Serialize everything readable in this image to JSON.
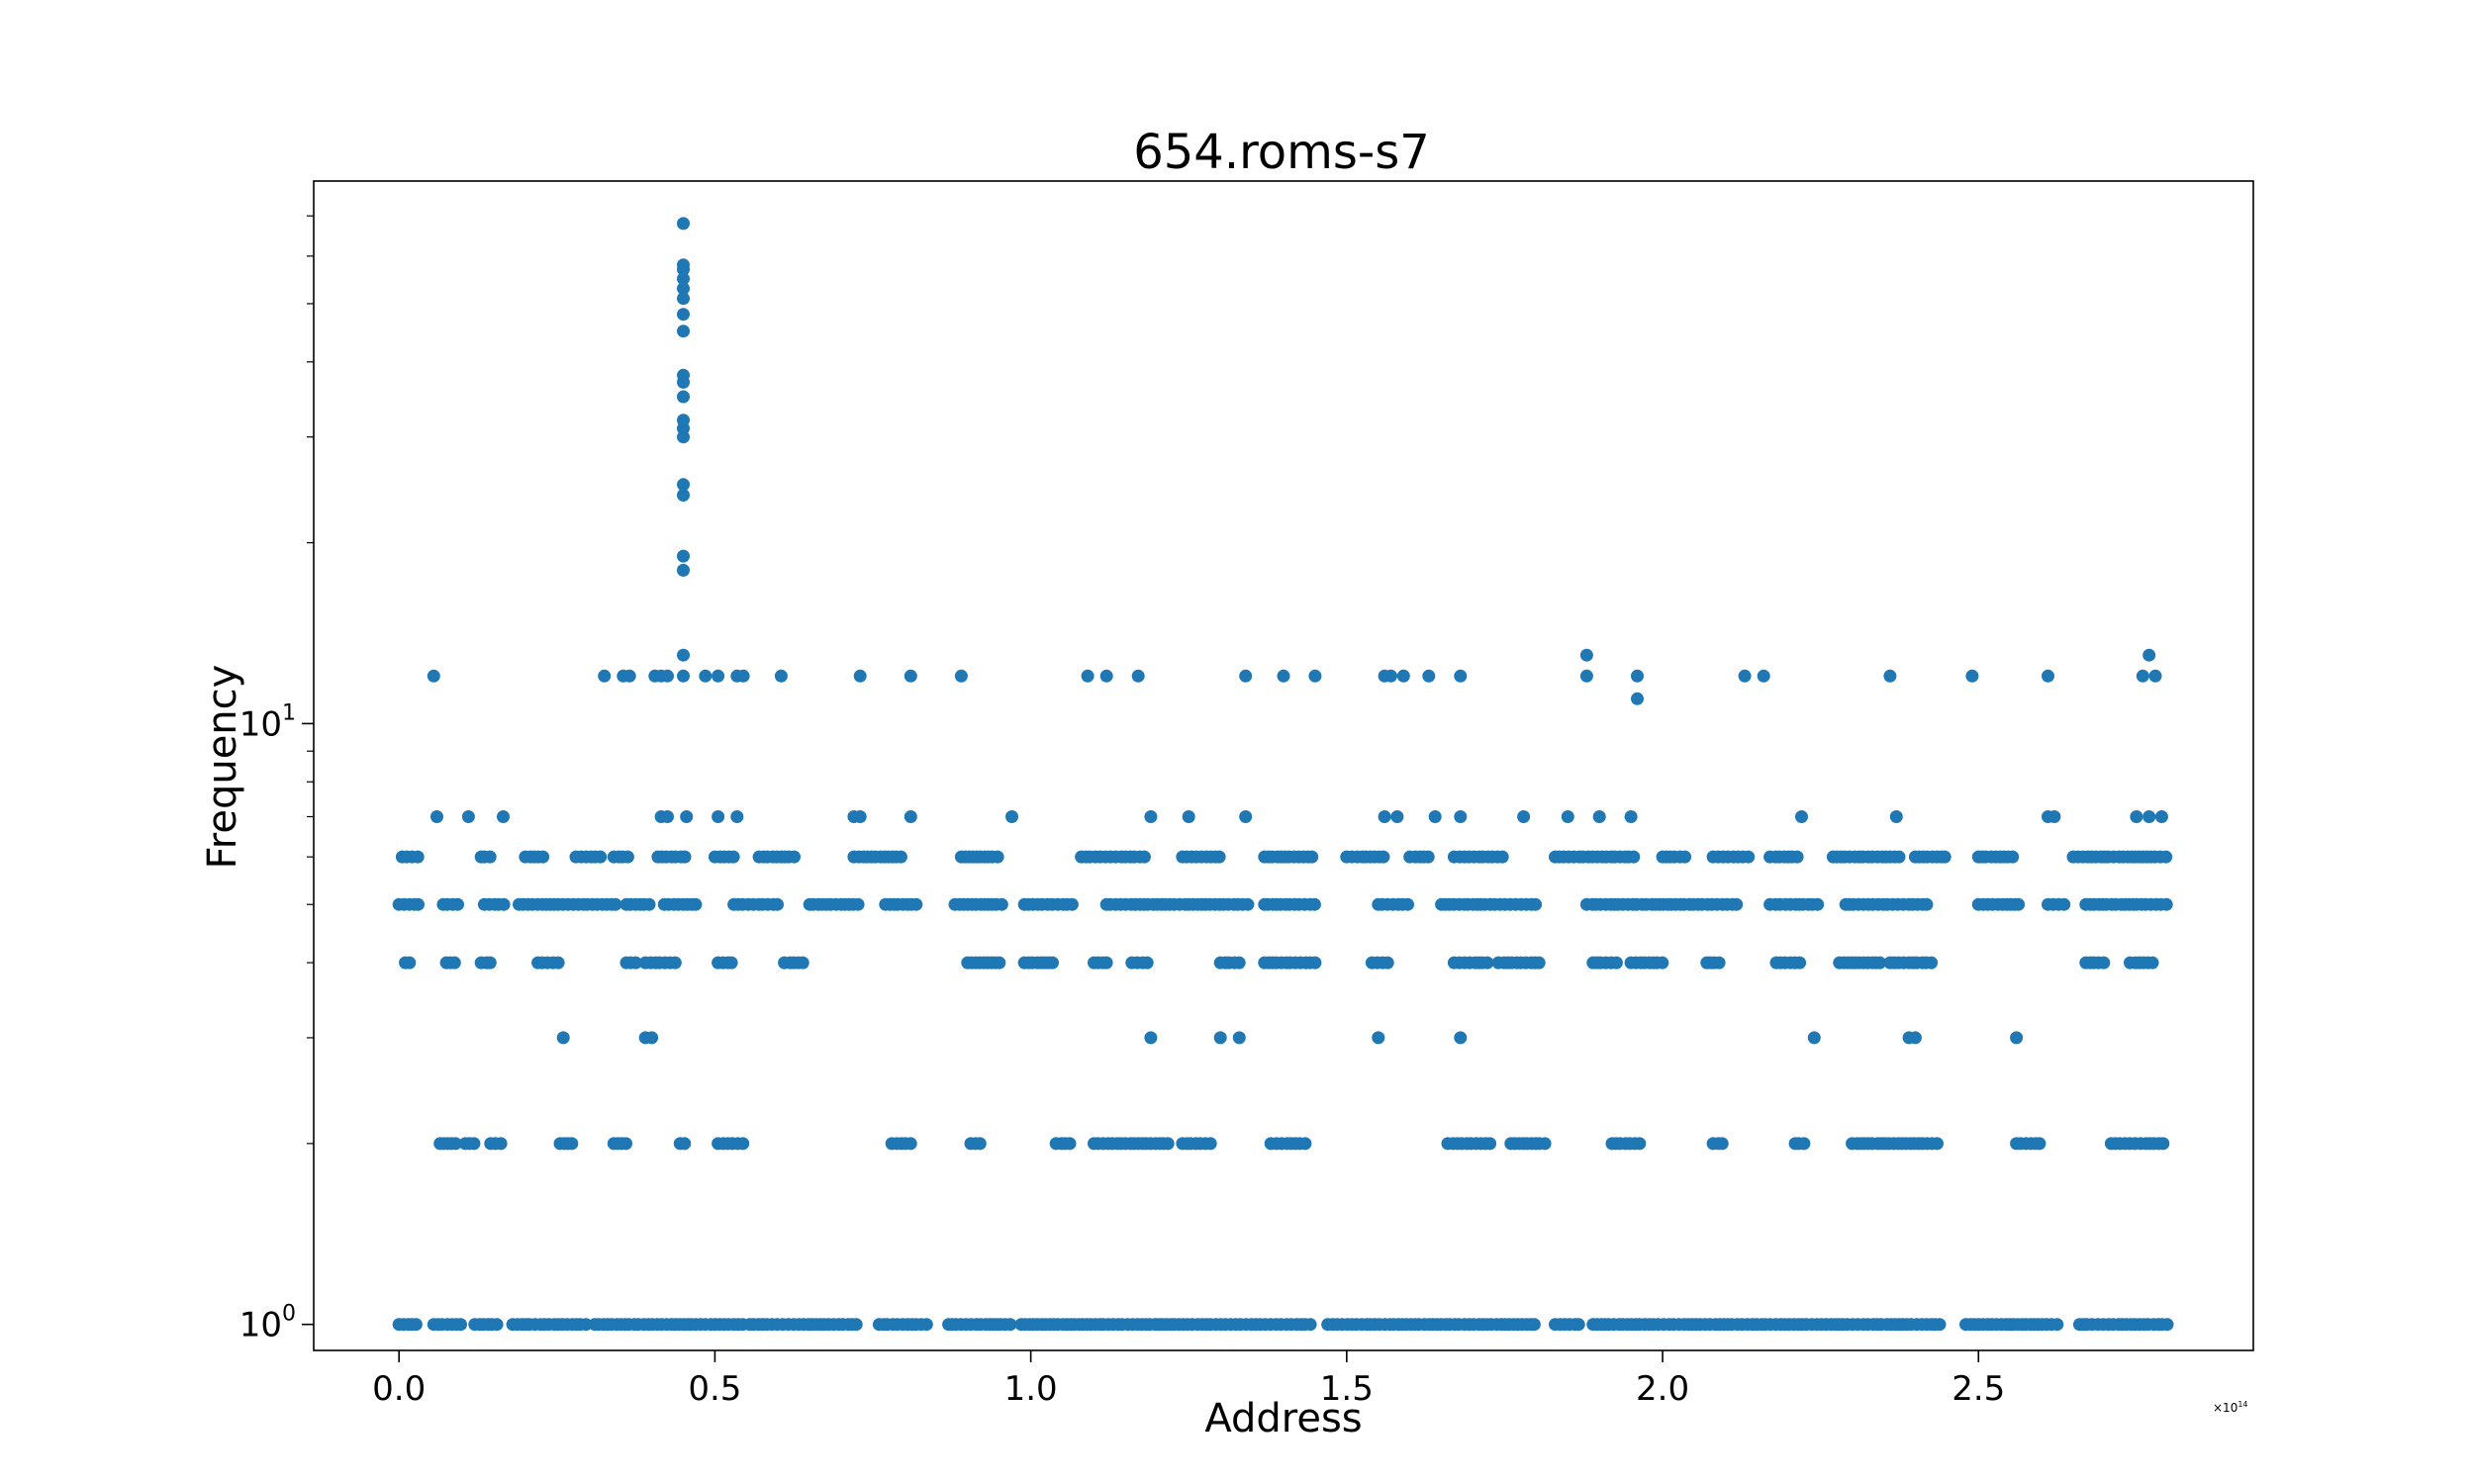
{
  "chart_data": {
    "type": "scatter",
    "title": "654.roms-s7",
    "xlabel": "Address",
    "ylabel": "Frequency",
    "x_scale": "linear",
    "y_scale": "log",
    "x_offset_label": "×10",
    "x_offset_exponent": "14",
    "xlim": [
      -0.135,
      2.935
    ],
    "ylim": [
      0.905,
      80
    ],
    "x_ticks": [
      {
        "value": 0.0,
        "label": "0.0"
      },
      {
        "value": 0.5,
        "label": "0.5"
      },
      {
        "value": 1.0,
        "label": "1.0"
      },
      {
        "value": 1.5,
        "label": "1.5"
      },
      {
        "value": 2.0,
        "label": "2.0"
      },
      {
        "value": 2.5,
        "label": "2.5"
      }
    ],
    "y_ticks": [
      {
        "value": 1,
        "base": "10",
        "exp": "0"
      },
      {
        "value": 10,
        "base": "10",
        "exp": "1"
      }
    ],
    "y_minor_ticks": [
      2,
      3,
      4,
      5,
      6,
      7,
      8,
      9,
      20,
      30,
      40,
      50,
      60,
      70
    ],
    "grid": false,
    "marker_color": "#1f77b4",
    "series": [
      {
        "name": "",
        "bands": [
          {
            "y": 1,
            "x_ranges": [
              [
                0.0,
                0.028
              ],
              [
                0.055,
                0.105
              ],
              [
                0.12,
                0.16
              ],
              [
                0.18,
                0.3
              ],
              [
                0.31,
                0.545
              ],
              [
                0.555,
                0.73
              ],
              [
                0.76,
                0.84
              ],
              [
                0.87,
                0.97
              ],
              [
                0.985,
                1.445
              ],
              [
                1.47,
                1.8
              ],
              [
                1.83,
                1.87
              ],
              [
                1.89,
                2.44
              ],
              [
                2.48,
                2.63
              ],
              [
                2.66,
                2.8
              ]
            ]
          },
          {
            "y": 2,
            "x_ranges": [
              [
                0.065,
                0.095
              ],
              [
                0.105,
                0.125
              ],
              [
                0.145,
                0.165
              ],
              [
                0.255,
                0.275
              ],
              [
                0.34,
                0.365
              ],
              [
                0.445,
                0.455
              ],
              [
                0.505,
                0.545
              ],
              [
                0.78,
                0.815
              ],
              [
                0.905,
                0.925
              ],
              [
                1.04,
                1.065
              ],
              [
                1.1,
                1.22
              ],
              [
                1.24,
                1.29
              ],
              [
                1.38,
                1.44
              ],
              [
                1.66,
                1.73
              ],
              [
                1.76,
                1.82
              ],
              [
                1.92,
                1.97
              ],
              [
                2.08,
                2.1
              ],
              [
                2.21,
                2.225
              ],
              [
                2.3,
                2.44
              ],
              [
                2.56,
                2.6
              ],
              [
                2.71,
                2.8
              ]
            ]
          },
          {
            "y": 4,
            "x_ranges": [
              [
                0.01,
                0.02
              ],
              [
                0.075,
                0.09
              ],
              [
                0.13,
                0.145
              ],
              [
                0.22,
                0.255
              ],
              [
                0.36,
                0.38
              ],
              [
                0.39,
                0.44
              ],
              [
                0.505,
                0.53
              ],
              [
                0.61,
                0.64
              ],
              [
                0.9,
                0.955
              ],
              [
                0.99,
                1.04
              ],
              [
                1.1,
                1.12
              ],
              [
                1.16,
                1.19
              ],
              [
                1.3,
                1.33
              ],
              [
                1.37,
                1.45
              ],
              [
                1.54,
                1.57
              ],
              [
                1.67,
                1.73
              ],
              [
                1.74,
                1.81
              ],
              [
                1.89,
                1.93
              ],
              [
                1.95,
                2.0
              ],
              [
                2.07,
                2.09
              ],
              [
                2.18,
                2.22
              ],
              [
                2.28,
                2.35
              ],
              [
                2.36,
                2.43
              ],
              [
                2.67,
                2.7
              ],
              [
                2.74,
                2.78
              ]
            ]
          },
          {
            "y": 5,
            "x_ranges": [
              [
                0.0,
                0.035
              ],
              [
                0.07,
                0.095
              ],
              [
                0.135,
                0.17
              ],
              [
                0.19,
                0.35
              ],
              [
                0.36,
                0.4
              ],
              [
                0.42,
                0.47
              ],
              [
                0.53,
                0.6
              ],
              [
                0.65,
                0.73
              ],
              [
                0.77,
                0.82
              ],
              [
                0.88,
                0.96
              ],
              [
                0.99,
                1.07
              ],
              [
                1.12,
                1.35
              ],
              [
                1.37,
                1.45
              ],
              [
                1.55,
                1.6
              ],
              [
                1.65,
                1.8
              ],
              [
                1.88,
                2.12
              ],
              [
                2.17,
                2.25
              ],
              [
                2.29,
                2.42
              ],
              [
                2.5,
                2.57
              ],
              [
                2.61,
                2.64
              ],
              [
                2.67,
                2.8
              ]
            ]
          },
          {
            "y": 6,
            "x_ranges": [
              [
                0.005,
                0.035
              ],
              [
                0.13,
                0.15
              ],
              [
                0.2,
                0.23
              ],
              [
                0.28,
                0.32
              ],
              [
                0.34,
                0.37
              ],
              [
                0.41,
                0.46
              ],
              [
                0.5,
                0.53
              ],
              [
                0.57,
                0.63
              ],
              [
                0.72,
                0.8
              ],
              [
                0.89,
                0.95
              ],
              [
                1.08,
                1.18
              ],
              [
                1.24,
                1.3
              ],
              [
                1.37,
                1.45
              ],
              [
                1.5,
                1.56
              ],
              [
                1.6,
                1.63
              ],
              [
                1.67,
                1.75
              ],
              [
                1.83,
                1.96
              ],
              [
                2.0,
                2.04
              ],
              [
                2.08,
                2.14
              ],
              [
                2.17,
                2.22
              ],
              [
                2.27,
                2.38
              ],
              [
                2.4,
                2.45
              ],
              [
                2.5,
                2.56
              ],
              [
                2.65,
                2.8
              ]
            ]
          }
        ],
        "values": [
          {
            "x": 0.055,
            "y": 12
          },
          {
            "x": 0.325,
            "y": 12
          },
          {
            "x": 0.355,
            "y": 12
          },
          {
            "x": 0.365,
            "y": 12
          },
          {
            "x": 0.405,
            "y": 12
          },
          {
            "x": 0.415,
            "y": 12
          },
          {
            "x": 0.425,
            "y": 12
          },
          {
            "x": 0.45,
            "y": 12
          },
          {
            "x": 0.485,
            "y": 12
          },
          {
            "x": 0.505,
            "y": 12
          },
          {
            "x": 0.535,
            "y": 12
          },
          {
            "x": 0.545,
            "y": 12
          },
          {
            "x": 0.605,
            "y": 12
          },
          {
            "x": 0.73,
            "y": 12
          },
          {
            "x": 0.81,
            "y": 12
          },
          {
            "x": 0.89,
            "y": 12
          },
          {
            "x": 1.09,
            "y": 12
          },
          {
            "x": 1.12,
            "y": 12
          },
          {
            "x": 1.17,
            "y": 12
          },
          {
            "x": 1.34,
            "y": 12
          },
          {
            "x": 1.4,
            "y": 12
          },
          {
            "x": 1.45,
            "y": 12
          },
          {
            "x": 1.56,
            "y": 12
          },
          {
            "x": 1.57,
            "y": 12
          },
          {
            "x": 1.59,
            "y": 12
          },
          {
            "x": 1.63,
            "y": 12
          },
          {
            "x": 1.68,
            "y": 12
          },
          {
            "x": 1.88,
            "y": 12
          },
          {
            "x": 1.96,
            "y": 12
          },
          {
            "x": 2.13,
            "y": 12
          },
          {
            "x": 2.16,
            "y": 12
          },
          {
            "x": 2.36,
            "y": 12
          },
          {
            "x": 2.49,
            "y": 12
          },
          {
            "x": 2.61,
            "y": 12
          },
          {
            "x": 2.76,
            "y": 12
          },
          {
            "x": 2.78,
            "y": 12
          },
          {
            "x": 0.45,
            "y": 13
          },
          {
            "x": 1.88,
            "y": 13
          },
          {
            "x": 2.77,
            "y": 13
          },
          {
            "x": 1.96,
            "y": 11
          },
          {
            "x": 0.45,
            "y": 18
          },
          {
            "x": 0.45,
            "y": 19
          },
          {
            "x": 0.45,
            "y": 24
          },
          {
            "x": 0.45,
            "y": 25
          },
          {
            "x": 0.45,
            "y": 30
          },
          {
            "x": 0.45,
            "y": 31
          },
          {
            "x": 0.45,
            "y": 32
          },
          {
            "x": 0.45,
            "y": 35
          },
          {
            "x": 0.45,
            "y": 37
          },
          {
            "x": 0.45,
            "y": 38
          },
          {
            "x": 0.45,
            "y": 45
          },
          {
            "x": 0.45,
            "y": 48
          },
          {
            "x": 0.45,
            "y": 51
          },
          {
            "x": 0.45,
            "y": 53
          },
          {
            "x": 0.45,
            "y": 55
          },
          {
            "x": 0.45,
            "y": 57
          },
          {
            "x": 0.45,
            "y": 58
          },
          {
            "x": 0.45,
            "y": 68
          },
          {
            "x": 0.06,
            "y": 7
          },
          {
            "x": 0.11,
            "y": 7
          },
          {
            "x": 0.165,
            "y": 7
          },
          {
            "x": 0.415,
            "y": 7
          },
          {
            "x": 0.425,
            "y": 7
          },
          {
            "x": 0.455,
            "y": 7
          },
          {
            "x": 0.505,
            "y": 7
          },
          {
            "x": 0.535,
            "y": 7
          },
          {
            "x": 0.72,
            "y": 7
          },
          {
            "x": 0.73,
            "y": 7
          },
          {
            "x": 0.81,
            "y": 7
          },
          {
            "x": 0.97,
            "y": 7
          },
          {
            "x": 1.19,
            "y": 7
          },
          {
            "x": 1.25,
            "y": 7
          },
          {
            "x": 1.34,
            "y": 7
          },
          {
            "x": 1.56,
            "y": 7
          },
          {
            "x": 1.58,
            "y": 7
          },
          {
            "x": 1.64,
            "y": 7
          },
          {
            "x": 1.68,
            "y": 7
          },
          {
            "x": 1.78,
            "y": 7
          },
          {
            "x": 1.85,
            "y": 7
          },
          {
            "x": 1.9,
            "y": 7
          },
          {
            "x": 1.95,
            "y": 7
          },
          {
            "x": 2.22,
            "y": 7
          },
          {
            "x": 2.37,
            "y": 7
          },
          {
            "x": 2.61,
            "y": 7
          },
          {
            "x": 2.62,
            "y": 7
          },
          {
            "x": 2.75,
            "y": 7
          },
          {
            "x": 2.77,
            "y": 7
          },
          {
            "x": 2.79,
            "y": 7
          },
          {
            "x": 0.26,
            "y": 3
          },
          {
            "x": 0.39,
            "y": 3
          },
          {
            "x": 0.4,
            "y": 3
          },
          {
            "x": 1.19,
            "y": 3
          },
          {
            "x": 1.3,
            "y": 3
          },
          {
            "x": 1.33,
            "y": 3
          },
          {
            "x": 1.55,
            "y": 3
          },
          {
            "x": 1.68,
            "y": 3
          },
          {
            "x": 2.24,
            "y": 3
          },
          {
            "x": 2.39,
            "y": 3
          },
          {
            "x": 2.4,
            "y": 3
          },
          {
            "x": 2.56,
            "y": 3
          }
        ]
      }
    ]
  }
}
